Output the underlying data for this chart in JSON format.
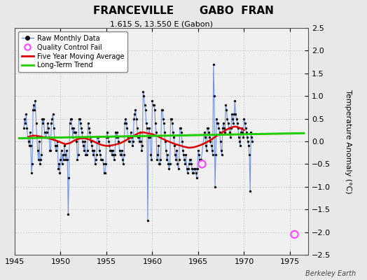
{
  "title": "FRANCEVILLE       GABO  FRAN",
  "subtitle": "1.615 S, 13.550 E (Gabon)",
  "ylabel": "Temperature Anomaly (°C)",
  "credit": "Berkeley Earth",
  "xlim": [
    1945,
    1977
  ],
  "ylim": [
    -2.5,
    2.5
  ],
  "xticks": [
    1945,
    1950,
    1955,
    1960,
    1965,
    1970,
    1975
  ],
  "yticks": [
    -2.5,
    -2.0,
    -1.5,
    -1.0,
    -0.5,
    0.0,
    0.5,
    1.0,
    1.5,
    2.0,
    2.5
  ],
  "bg_color": "#e8e8e8",
  "plot_bg_color": "#f0f0f0",
  "raw_line_color": "#6688dd",
  "raw_marker_color": "#111111",
  "moving_avg_color": "#dd0000",
  "trend_color": "#22cc00",
  "qc_fail_color": "#ff44ff",
  "raw_data": [
    [
      1946.0,
      0.3
    ],
    [
      1946.083,
      0.5
    ],
    [
      1946.167,
      0.4
    ],
    [
      1946.25,
      0.6
    ],
    [
      1946.333,
      0.3
    ],
    [
      1946.417,
      0.1
    ],
    [
      1946.5,
      0.0
    ],
    [
      1946.583,
      -0.1
    ],
    [
      1946.667,
      0.2
    ],
    [
      1946.75,
      -0.1
    ],
    [
      1946.833,
      -0.7
    ],
    [
      1946.917,
      -0.5
    ],
    [
      1947.0,
      0.7
    ],
    [
      1947.083,
      0.8
    ],
    [
      1947.167,
      0.7
    ],
    [
      1947.25,
      0.9
    ],
    [
      1947.333,
      0.4
    ],
    [
      1947.417,
      0.1
    ],
    [
      1947.5,
      -0.2
    ],
    [
      1947.583,
      -0.4
    ],
    [
      1947.667,
      0.0
    ],
    [
      1947.75,
      -0.5
    ],
    [
      1947.833,
      -0.4
    ],
    [
      1947.917,
      -0.3
    ],
    [
      1948.0,
      0.5
    ],
    [
      1948.083,
      0.4
    ],
    [
      1948.167,
      0.5
    ],
    [
      1948.25,
      0.2
    ],
    [
      1948.333,
      0.1
    ],
    [
      1948.417,
      0.1
    ],
    [
      1948.5,
      0.2
    ],
    [
      1948.583,
      0.4
    ],
    [
      1948.667,
      0.3
    ],
    [
      1948.75,
      0.1
    ],
    [
      1948.833,
      -0.2
    ],
    [
      1948.917,
      -0.2
    ],
    [
      1949.0,
      0.4
    ],
    [
      1949.083,
      0.5
    ],
    [
      1949.167,
      0.6
    ],
    [
      1949.25,
      0.3
    ],
    [
      1949.333,
      0.1
    ],
    [
      1949.417,
      -0.1
    ],
    [
      1949.5,
      -0.2
    ],
    [
      1949.583,
      -0.1
    ],
    [
      1949.667,
      0.0
    ],
    [
      1949.75,
      -0.6
    ],
    [
      1949.833,
      -0.5
    ],
    [
      1949.917,
      -0.7
    ],
    [
      1950.0,
      -0.4
    ],
    [
      1950.083,
      -0.2
    ],
    [
      1950.167,
      -0.5
    ],
    [
      1950.25,
      -0.3
    ],
    [
      1950.333,
      -0.4
    ],
    [
      1950.417,
      -0.1
    ],
    [
      1950.5,
      -0.3
    ],
    [
      1950.583,
      -0.4
    ],
    [
      1950.667,
      -0.2
    ],
    [
      1950.75,
      -0.4
    ],
    [
      1950.833,
      -1.6
    ],
    [
      1950.917,
      -0.8
    ],
    [
      1951.0,
      0.4
    ],
    [
      1951.083,
      0.5
    ],
    [
      1951.167,
      0.5
    ],
    [
      1951.25,
      0.3
    ],
    [
      1951.333,
      0.1
    ],
    [
      1951.417,
      0.3
    ],
    [
      1951.5,
      0.2
    ],
    [
      1951.583,
      0.2
    ],
    [
      1951.667,
      0.2
    ],
    [
      1951.75,
      0.0
    ],
    [
      1951.833,
      -0.4
    ],
    [
      1951.917,
      -0.3
    ],
    [
      1952.0,
      0.5
    ],
    [
      1952.083,
      0.5
    ],
    [
      1952.167,
      0.4
    ],
    [
      1952.25,
      0.3
    ],
    [
      1952.333,
      0.2
    ],
    [
      1952.417,
      0.0
    ],
    [
      1952.5,
      -0.1
    ],
    [
      1952.583,
      -0.2
    ],
    [
      1952.667,
      0.0
    ],
    [
      1952.75,
      -0.3
    ],
    [
      1952.833,
      -0.3
    ],
    [
      1952.917,
      -0.2
    ],
    [
      1953.0,
      0.4
    ],
    [
      1953.083,
      0.3
    ],
    [
      1953.167,
      0.2
    ],
    [
      1953.25,
      0.1
    ],
    [
      1953.333,
      0.0
    ],
    [
      1953.417,
      -0.1
    ],
    [
      1953.5,
      -0.2
    ],
    [
      1953.583,
      -0.3
    ],
    [
      1953.667,
      -0.2
    ],
    [
      1953.75,
      -0.5
    ],
    [
      1953.833,
      -0.4
    ],
    [
      1953.917,
      -0.3
    ],
    [
      1954.0,
      0.1
    ],
    [
      1954.083,
      0.1
    ],
    [
      1954.167,
      0.0
    ],
    [
      1954.25,
      -0.2
    ],
    [
      1954.333,
      -0.3
    ],
    [
      1954.417,
      -0.4
    ],
    [
      1954.5,
      -0.4
    ],
    [
      1954.583,
      -0.4
    ],
    [
      1954.667,
      -0.5
    ],
    [
      1954.75,
      -0.7
    ],
    [
      1954.833,
      -0.7
    ],
    [
      1954.917,
      -0.5
    ],
    [
      1955.0,
      0.1
    ],
    [
      1955.083,
      0.2
    ],
    [
      1955.167,
      0.1
    ],
    [
      1955.25,
      0.0
    ],
    [
      1955.333,
      -0.1
    ],
    [
      1955.417,
      -0.2
    ],
    [
      1955.5,
      -0.2
    ],
    [
      1955.583,
      -0.3
    ],
    [
      1955.667,
      -0.2
    ],
    [
      1955.75,
      -0.3
    ],
    [
      1955.833,
      -0.4
    ],
    [
      1955.917,
      -0.3
    ],
    [
      1956.0,
      0.2
    ],
    [
      1956.083,
      0.1
    ],
    [
      1956.167,
      0.2
    ],
    [
      1956.25,
      0.1
    ],
    [
      1956.333,
      0.0
    ],
    [
      1956.417,
      -0.2
    ],
    [
      1956.5,
      -0.3
    ],
    [
      1956.583,
      -0.3
    ],
    [
      1956.667,
      -0.2
    ],
    [
      1956.75,
      -0.4
    ],
    [
      1956.833,
      -0.5
    ],
    [
      1956.917,
      -0.3
    ],
    [
      1957.0,
      0.4
    ],
    [
      1957.083,
      0.5
    ],
    [
      1957.167,
      0.4
    ],
    [
      1957.25,
      0.3
    ],
    [
      1957.333,
      0.1
    ],
    [
      1957.417,
      0.0
    ],
    [
      1957.5,
      0.0
    ],
    [
      1957.583,
      0.1
    ],
    [
      1957.667,
      0.2
    ],
    [
      1957.75,
      0.1
    ],
    [
      1957.833,
      -0.1
    ],
    [
      1957.917,
      0.0
    ],
    [
      1958.0,
      0.5
    ],
    [
      1958.083,
      0.6
    ],
    [
      1958.167,
      0.7
    ],
    [
      1958.25,
      0.5
    ],
    [
      1958.333,
      0.3
    ],
    [
      1958.417,
      0.1
    ],
    [
      1958.5,
      0.1
    ],
    [
      1958.583,
      0.0
    ],
    [
      1958.667,
      0.2
    ],
    [
      1958.75,
      0.0
    ],
    [
      1958.833,
      -0.2
    ],
    [
      1958.917,
      -0.1
    ],
    [
      1959.0,
      1.1
    ],
    [
      1959.083,
      1.0
    ],
    [
      1959.167,
      0.8
    ],
    [
      1959.25,
      0.7
    ],
    [
      1959.333,
      0.4
    ],
    [
      1959.417,
      0.3
    ],
    [
      1959.5,
      -1.75
    ],
    [
      1959.583,
      0.1
    ],
    [
      1959.667,
      0.3
    ],
    [
      1959.75,
      0.1
    ],
    [
      1959.833,
      -0.3
    ],
    [
      1959.917,
      -0.4
    ],
    [
      1960.0,
      0.9
    ],
    [
      1960.083,
      0.8
    ],
    [
      1960.167,
      0.8
    ],
    [
      1960.25,
      0.7
    ],
    [
      1960.333,
      0.4
    ],
    [
      1960.417,
      0.2
    ],
    [
      1960.5,
      -0.4
    ],
    [
      1960.583,
      -0.3
    ],
    [
      1960.667,
      -0.1
    ],
    [
      1960.75,
      -0.5
    ],
    [
      1960.833,
      -0.5
    ],
    [
      1960.917,
      -0.4
    ],
    [
      1961.0,
      0.7
    ],
    [
      1961.083,
      0.7
    ],
    [
      1961.167,
      0.5
    ],
    [
      1961.25,
      0.4
    ],
    [
      1961.333,
      0.2
    ],
    [
      1961.417,
      0.0
    ],
    [
      1961.5,
      -0.2
    ],
    [
      1961.583,
      -0.4
    ],
    [
      1961.667,
      -0.3
    ],
    [
      1961.75,
      -0.5
    ],
    [
      1961.833,
      -0.6
    ],
    [
      1961.917,
      -0.5
    ],
    [
      1962.0,
      0.5
    ],
    [
      1962.083,
      0.5
    ],
    [
      1962.167,
      0.4
    ],
    [
      1962.25,
      0.2
    ],
    [
      1962.333,
      0.1
    ],
    [
      1962.417,
      -0.1
    ],
    [
      1962.5,
      -0.3
    ],
    [
      1962.583,
      -0.4
    ],
    [
      1962.667,
      -0.2
    ],
    [
      1962.75,
      -0.5
    ],
    [
      1962.833,
      -0.6
    ],
    [
      1962.917,
      -0.4
    ],
    [
      1963.0,
      0.3
    ],
    [
      1963.083,
      0.3
    ],
    [
      1963.167,
      0.2
    ],
    [
      1963.25,
      0.0
    ],
    [
      1963.333,
      -0.2
    ],
    [
      1963.417,
      -0.3
    ],
    [
      1963.5,
      -0.4
    ],
    [
      1963.583,
      -0.5
    ],
    [
      1963.667,
      -0.3
    ],
    [
      1963.75,
      -0.6
    ],
    [
      1963.833,
      -0.7
    ],
    [
      1963.917,
      -0.6
    ],
    [
      1964.0,
      -0.5
    ],
    [
      1964.083,
      -0.4
    ],
    [
      1964.167,
      -0.4
    ],
    [
      1964.25,
      -0.5
    ],
    [
      1964.333,
      -0.6
    ],
    [
      1964.417,
      -0.7
    ],
    [
      1964.5,
      -0.7
    ],
    [
      1964.583,
      -0.6
    ],
    [
      1964.667,
      -0.6
    ],
    [
      1964.75,
      -0.7
    ],
    [
      1964.833,
      -0.8
    ],
    [
      1964.917,
      -0.6
    ],
    [
      1965.0,
      -0.2
    ],
    [
      1965.083,
      -0.3
    ],
    [
      1965.167,
      -0.4
    ],
    [
      1965.25,
      -0.4
    ],
    [
      1965.333,
      -0.4
    ],
    [
      1965.667,
      0.2
    ],
    [
      1965.75,
      0.1
    ],
    [
      1965.833,
      -0.1
    ],
    [
      1965.917,
      -0.2
    ],
    [
      1966.0,
      0.3
    ],
    [
      1966.083,
      0.3
    ],
    [
      1966.167,
      0.2
    ],
    [
      1966.25,
      0.1
    ],
    [
      1966.333,
      0.0
    ],
    [
      1966.417,
      -0.1
    ],
    [
      1966.5,
      -0.2
    ],
    [
      1966.583,
      -0.3
    ],
    [
      1966.667,
      1.7
    ],
    [
      1966.75,
      1.0
    ],
    [
      1966.833,
      -1.0
    ],
    [
      1966.917,
      -0.3
    ],
    [
      1967.0,
      0.5
    ],
    [
      1967.083,
      0.4
    ],
    [
      1967.167,
      0.4
    ],
    [
      1967.25,
      0.3
    ],
    [
      1967.333,
      0.2
    ],
    [
      1967.417,
      0.0
    ],
    [
      1967.5,
      -0.2
    ],
    [
      1967.583,
      -0.3
    ],
    [
      1967.667,
      0.3
    ],
    [
      1967.75,
      0.4
    ],
    [
      1967.833,
      0.3
    ],
    [
      1967.917,
      0.2
    ],
    [
      1968.0,
      0.8
    ],
    [
      1968.083,
      0.7
    ],
    [
      1968.167,
      0.5
    ],
    [
      1968.25,
      0.4
    ],
    [
      1968.333,
      0.3
    ],
    [
      1968.417,
      0.2
    ],
    [
      1968.5,
      0.1
    ],
    [
      1968.583,
      0.3
    ],
    [
      1968.667,
      0.6
    ],
    [
      1968.75,
      0.5
    ],
    [
      1968.833,
      0.4
    ],
    [
      1968.917,
      0.6
    ],
    [
      1969.0,
      0.9
    ],
    [
      1969.083,
      0.6
    ],
    [
      1969.167,
      0.5
    ],
    [
      1969.25,
      0.4
    ],
    [
      1969.333,
      0.3
    ],
    [
      1969.417,
      0.1
    ],
    [
      1969.5,
      0.0
    ],
    [
      1969.583,
      -0.1
    ],
    [
      1969.667,
      0.2
    ],
    [
      1969.75,
      0.3
    ],
    [
      1969.833,
      0.2
    ],
    [
      1969.917,
      0.1
    ],
    [
      1970.0,
      0.5
    ],
    [
      1970.083,
      0.4
    ],
    [
      1970.167,
      0.3
    ],
    [
      1970.25,
      0.2
    ],
    [
      1970.333,
      0.1
    ],
    [
      1970.417,
      0.0
    ],
    [
      1970.5,
      -0.1
    ],
    [
      1970.583,
      -0.3
    ],
    [
      1970.667,
      -1.1
    ],
    [
      1970.75,
      0.2
    ],
    [
      1970.833,
      0.1
    ],
    [
      1970.917,
      0.0
    ]
  ],
  "qc_fail_points": [
    [
      1965.417,
      -0.5
    ],
    [
      1975.5,
      -2.05
    ]
  ],
  "moving_avg": [
    [
      1946.5,
      0.1
    ],
    [
      1947.0,
      0.13
    ],
    [
      1947.5,
      0.12
    ],
    [
      1948.0,
      0.1
    ],
    [
      1948.5,
      0.08
    ],
    [
      1949.0,
      0.05
    ],
    [
      1949.5,
      0.02
    ],
    [
      1950.0,
      -0.02
    ],
    [
      1950.5,
      -0.06
    ],
    [
      1951.0,
      -0.04
    ],
    [
      1951.5,
      0.02
    ],
    [
      1952.0,
      0.06
    ],
    [
      1952.5,
      0.07
    ],
    [
      1953.0,
      0.05
    ],
    [
      1953.5,
      0.01
    ],
    [
      1954.0,
      -0.04
    ],
    [
      1954.5,
      -0.08
    ],
    [
      1955.0,
      -0.1
    ],
    [
      1955.5,
      -0.09
    ],
    [
      1956.0,
      -0.07
    ],
    [
      1956.5,
      -0.04
    ],
    [
      1957.0,
      0.01
    ],
    [
      1957.5,
      0.07
    ],
    [
      1958.0,
      0.13
    ],
    [
      1958.5,
      0.18
    ],
    [
      1959.0,
      0.2
    ],
    [
      1959.5,
      0.18
    ],
    [
      1960.0,
      0.16
    ],
    [
      1960.5,
      0.12
    ],
    [
      1961.0,
      0.07
    ],
    [
      1961.5,
      0.02
    ],
    [
      1962.0,
      -0.02
    ],
    [
      1962.5,
      -0.06
    ],
    [
      1963.0,
      -0.09
    ],
    [
      1963.5,
      -0.12
    ],
    [
      1964.0,
      -0.14
    ],
    [
      1964.5,
      -0.13
    ],
    [
      1965.0,
      -0.1
    ],
    [
      1965.5,
      -0.06
    ],
    [
      1966.0,
      -0.01
    ],
    [
      1966.5,
      0.05
    ],
    [
      1967.0,
      0.12
    ],
    [
      1967.5,
      0.18
    ],
    [
      1968.0,
      0.25
    ],
    [
      1968.5,
      0.3
    ],
    [
      1969.0,
      0.33
    ],
    [
      1969.5,
      0.3
    ],
    [
      1970.0,
      0.25
    ]
  ],
  "trend_line": [
    [
      1945.5,
      0.07
    ],
    [
      1976.5,
      0.18
    ]
  ]
}
